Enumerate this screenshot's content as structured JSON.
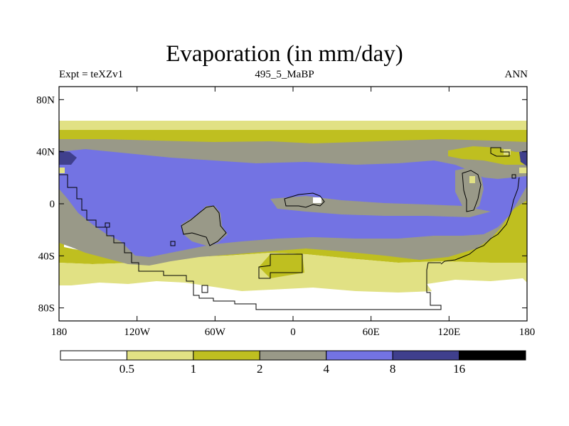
{
  "title": "Evaporation (in mm/day)",
  "subtitle_left": "Expt = teXZv1",
  "subtitle_center": "495_5_MaBP",
  "subtitle_right": "ANN",
  "lat_ticks": [
    {
      "label": "80N",
      "lat": 80
    },
    {
      "label": "40N",
      "lat": 40
    },
    {
      "label": "0",
      "lat": 0
    },
    {
      "label": "40S",
      "lat": -40
    },
    {
      "label": "80S",
      "lat": -80
    }
  ],
  "lon_ticks": [
    {
      "label": "180",
      "lon": -180
    },
    {
      "label": "120W",
      "lon": -120
    },
    {
      "label": "60W",
      "lon": -60
    },
    {
      "label": "0",
      "lon": 0
    },
    {
      "label": "60E",
      "lon": 60
    },
    {
      "label": "120E",
      "lon": 120
    },
    {
      "label": "180",
      "lon": 180
    }
  ],
  "colorbar": {
    "colors": [
      "#ffffff",
      "#e1e184",
      "#bfbf20",
      "#999988",
      "#7373e3",
      "#3f3f8d",
      "#000000"
    ],
    "labels": [
      "0.5",
      "1",
      "2",
      "4",
      "8",
      "16"
    ]
  }
}
